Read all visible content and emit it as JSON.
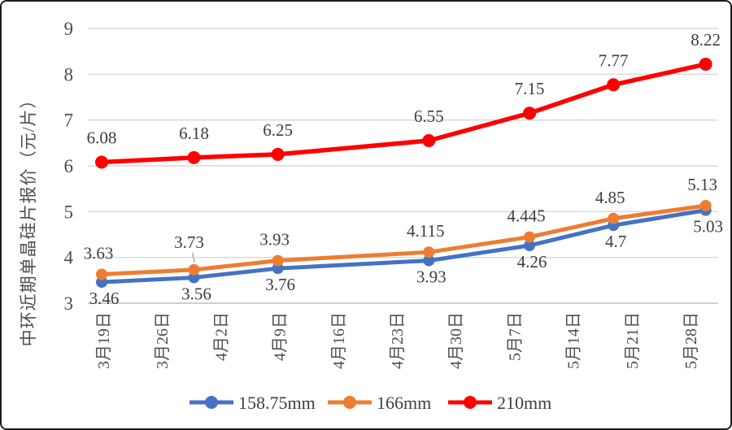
{
  "chart_data": {
    "type": "line",
    "title": "",
    "xlabel": "",
    "y_axis_title": "中环近期单晶硅片报价（元/片）",
    "ylim": [
      3,
      9
    ],
    "y_ticks": [
      3,
      4,
      5,
      6,
      7,
      8,
      9
    ],
    "x_tick_labels": [
      "3月19日",
      "3月26日",
      "4月2日",
      "4月9日",
      "4月16日",
      "4月23日",
      "4月30日",
      "5月7日",
      "5月14日",
      "5月21日",
      "5月28日"
    ],
    "x_tick_day_offsets": [
      0,
      7,
      14,
      21,
      28,
      35,
      42,
      49,
      56,
      63,
      70
    ],
    "point_day_offsets": [
      0,
      11,
      21,
      39,
      51,
      61,
      72
    ],
    "grid": "horizontal",
    "gridline_color": "#d9d9d9",
    "axis_line_color": "#bfbfbf",
    "legend_position": "bottom",
    "series": [
      {
        "name": "158.75mm",
        "color": "#4472C4",
        "marker": "circle",
        "label_side": "below",
        "values": [
          3.46,
          3.56,
          3.76,
          3.93,
          4.26,
          4.7,
          5.03
        ]
      },
      {
        "name": "166mm",
        "color": "#ED7D31",
        "marker": "circle",
        "label_side": "above",
        "callout_point_index": 1,
        "values": [
          3.63,
          3.73,
          3.93,
          4.115,
          4.445,
          4.85,
          5.13
        ]
      },
      {
        "name": "210mm",
        "color": "#FF0000",
        "marker": "circle",
        "label_side": "above",
        "values": [
          6.08,
          6.18,
          6.25,
          6.55,
          7.15,
          7.77,
          8.22
        ]
      }
    ]
  }
}
